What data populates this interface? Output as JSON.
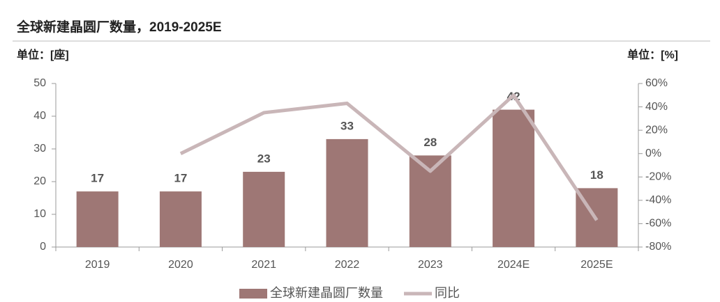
{
  "chart_data": {
    "type": "bar",
    "title": "全球新建晶圆厂数量，2019-2025E",
    "y_label": "单位：[座]",
    "y2_label": "单位：[%]",
    "categories": [
      "2019",
      "2020",
      "2021",
      "2022",
      "2023",
      "2024E",
      "2025E"
    ],
    "series": [
      {
        "name": "全球新建晶圆厂数量",
        "type": "bar",
        "color": "#9e7775",
        "values": [
          17,
          17,
          23,
          33,
          28,
          42,
          18
        ]
      },
      {
        "name": "同比",
        "type": "line",
        "axis": "y2",
        "color": "#c9b6b8",
        "values": [
          null,
          0,
          35,
          43,
          -15,
          50,
          -57
        ]
      }
    ],
    "ylim": [
      0,
      50
    ],
    "yticks": [
      0,
      10,
      20,
      30,
      40,
      50
    ],
    "y2lim": [
      -80,
      60
    ],
    "y2ticks": [
      {
        "value": -80,
        "label": "-80%"
      },
      {
        "value": -60,
        "label": "-60%"
      },
      {
        "value": -40,
        "label": "-40%"
      },
      {
        "value": -20,
        "label": "-20%"
      },
      {
        "value": 0,
        "label": "0%"
      },
      {
        "value": 20,
        "label": "20%"
      },
      {
        "value": 40,
        "label": "40%"
      },
      {
        "value": 60,
        "label": "60%"
      }
    ]
  }
}
